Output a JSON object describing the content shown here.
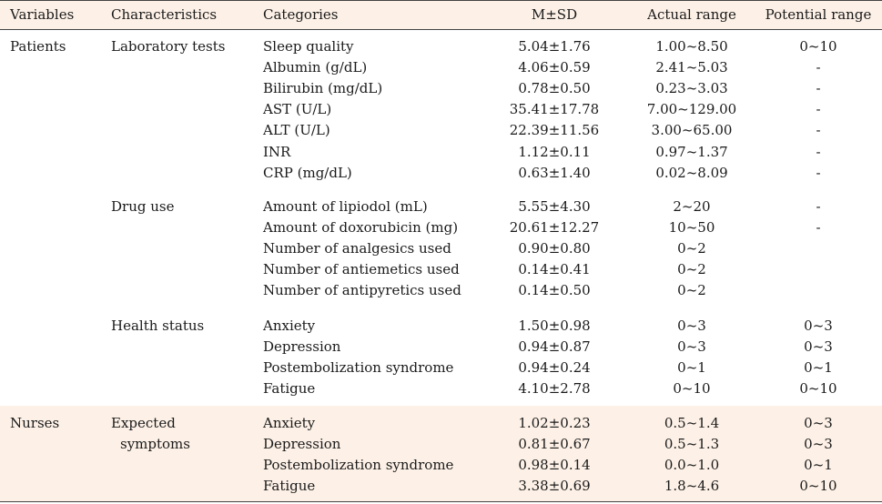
{
  "header": {
    "variables": "Variables",
    "characteristics": "Characteristics",
    "categories": "Categories",
    "msd": "M±SD",
    "actual_range": "Actual range",
    "potential_range": "Potential range"
  },
  "patients_label": "Patients",
  "nurses_label": "Nurses",
  "rows": {
    "lab": [
      {
        "characteristic": "Laboratory tests",
        "category": "Sleep quality",
        "msd": "5.04±1.76",
        "actual": "1.00~8.50",
        "potential": "0~10"
      },
      {
        "characteristic": "",
        "category": "Albumin (g/dL)",
        "msd": "4.06±0.59",
        "actual": "2.41~5.03",
        "potential": "-"
      },
      {
        "characteristic": "",
        "category": "Bilirubin (mg/dL)",
        "msd": "0.78±0.50",
        "actual": "0.23~3.03",
        "potential": "-"
      },
      {
        "characteristic": "",
        "category": "AST (U/L)",
        "msd": "35.41±17.78",
        "actual": "7.00~129.00",
        "potential": "-"
      },
      {
        "characteristic": "",
        "category": "ALT (U/L)",
        "msd": "22.39±11.56",
        "actual": "3.00~65.00",
        "potential": "-"
      },
      {
        "characteristic": "",
        "category": "INR",
        "msd": "1.12±0.11",
        "actual": "0.97~1.37",
        "potential": "-"
      },
      {
        "characteristic": "",
        "category": "CRP (mg/dL)",
        "msd": "0.63±1.40",
        "actual": "0.02~8.09",
        "potential": "-"
      }
    ],
    "drug": [
      {
        "characteristic": "Drug use",
        "category": "Amount of lipiodol (mL)",
        "msd": "5.55±4.30",
        "actual": "2~20",
        "potential": "-"
      },
      {
        "characteristic": "",
        "category": "Amount of doxorubicin (mg)",
        "msd": "20.61±12.27",
        "actual": "10~50",
        "potential": "-"
      },
      {
        "characteristic": "",
        "category": "Number of analgesics used",
        "msd": "0.90±0.80",
        "actual": "0~2",
        "potential": ""
      },
      {
        "characteristic": "",
        "category": "Number of antiemetics used",
        "msd": "0.14±0.41",
        "actual": "0~2",
        "potential": ""
      },
      {
        "characteristic": "",
        "category": "Number of antipyretics used",
        "msd": "0.14±0.50",
        "actual": "0~2",
        "potential": ""
      }
    ],
    "health": [
      {
        "characteristic": "Health status",
        "category": "Anxiety",
        "msd": "1.50±0.98",
        "actual": "0~3",
        "potential": "0~3"
      },
      {
        "characteristic": "",
        "category": "Depression",
        "msd": "0.94±0.87",
        "actual": "0~3",
        "potential": "0~3"
      },
      {
        "characteristic": "",
        "category": "Postembolization syndrome",
        "msd": "0.94±0.24",
        "actual": "0~1",
        "potential": "0~1"
      },
      {
        "characteristic": "",
        "category": "Fatigue",
        "msd": "4.10±2.78",
        "actual": "0~10",
        "potential": "0~10"
      }
    ],
    "nurses": [
      {
        "characteristic": "Expected",
        "category": "Anxiety",
        "msd": "1.02±0.23",
        "actual": "0.5~1.4",
        "potential": "0~3"
      },
      {
        "characteristic": "symptoms",
        "category": "Depression",
        "msd": "0.81±0.67",
        "actual": "0.5~1.3",
        "potential": "0~3"
      },
      {
        "characteristic": "",
        "category": "Postembolization syndrome",
        "msd": "0.98±0.14",
        "actual": "0.0~1.0",
        "potential": "0~1"
      },
      {
        "characteristic": "",
        "category": "Fatigue",
        "msd": "3.38±0.69",
        "actual": "1.8~4.6",
        "potential": "0~10"
      }
    ]
  }
}
